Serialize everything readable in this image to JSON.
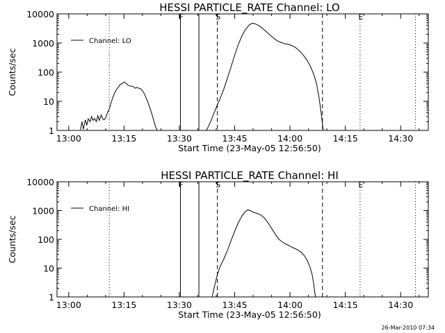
{
  "footer_timestamp": "26-Mar-2010 07:34",
  "chart_data": [
    {
      "type": "line",
      "title": "HESSI PARTICLE_RATE Channel: LO",
      "xlabel": "Start Time (23-May-05 12:56:50)",
      "ylabel": "Counts/sec",
      "x_units": "minutes after 13:00 (23-May-05)",
      "xlim": [
        -3.17,
        97.5
      ],
      "ylim": [
        1,
        10000
      ],
      "y_scale": "log",
      "x_ticks": [
        "13:00",
        "13:15",
        "13:30",
        "13:45",
        "14:00",
        "14:15",
        "14:30"
      ],
      "x_tick_values": [
        0,
        15,
        30,
        45,
        60,
        75,
        90
      ],
      "y_ticks": [
        "1",
        "10",
        "100",
        "1000",
        "10000"
      ],
      "y_tick_values": [
        1,
        10,
        100,
        1000,
        10000
      ],
      "legend": {
        "position": "top-left",
        "entries": [
          "Channel: LO"
        ]
      },
      "grid": false,
      "markers": [
        {
          "label": "F",
          "x": 30.3,
          "style": "solid"
        },
        {
          "label": "",
          "x": 35.3,
          "style": "solid"
        },
        {
          "label": "S",
          "x": 40.3,
          "style": "dashed"
        },
        {
          "label": "",
          "x": 68.8,
          "style": "dashed"
        },
        {
          "label": "E",
          "x": 79.0,
          "style": "dotted"
        },
        {
          "label": "",
          "x": 11.0,
          "style": "dotted"
        },
        {
          "label": "",
          "x": 94.0,
          "style": "dotted"
        }
      ],
      "series": [
        {
          "name": "Channel: LO",
          "segments": [
            [
              [
                3.2,
                1.05
              ],
              [
                3.6,
                2.0
              ],
              [
                4.0,
                1.1
              ],
              [
                4.5,
                2.3
              ],
              [
                4.9,
                1.5
              ],
              [
                5.3,
                2.5
              ],
              [
                5.8,
                2.0
              ],
              [
                6.2,
                3.0
              ],
              [
                6.6,
                2.2
              ],
              [
                7.0,
                2.6
              ],
              [
                7.5,
                2.0
              ],
              [
                7.9,
                3.2
              ],
              [
                8.3,
                2.2
              ],
              [
                8.8,
                3.4
              ],
              [
                9.2,
                2.5
              ],
              [
                9.6,
                2.3
              ],
              [
                10.0,
                2.7
              ],
              [
                10.5,
                4.0
              ],
              [
                11.0,
                5.5
              ],
              [
                11.5,
                9.0
              ],
              [
                12.0,
                14
              ],
              [
                12.5,
                20
              ],
              [
                13.0,
                26
              ],
              [
                13.5,
                31
              ],
              [
                14.0,
                38
              ],
              [
                14.5,
                40
              ],
              [
                15.0,
                46
              ],
              [
                15.5,
                42
              ],
              [
                16.0,
                36
              ],
              [
                16.5,
                34
              ],
              [
                17.0,
                33
              ],
              [
                17.5,
                32
              ],
              [
                18.0,
                28
              ],
              [
                18.5,
                30
              ],
              [
                19.0,
                28
              ],
              [
                19.5,
                27
              ],
              [
                20.0,
                23
              ],
              [
                20.5,
                18
              ],
              [
                21.0,
                13
              ],
              [
                21.5,
                9
              ],
              [
                22.0,
                6
              ],
              [
                22.5,
                3.8
              ],
              [
                23.0,
                2.3
              ],
              [
                23.5,
                1.4
              ],
              [
                24.0,
                1.0
              ]
            ],
            [
              [
                37.3,
                1.0
              ],
              [
                37.8,
                1.3
              ],
              [
                38.3,
                1.8
              ],
              [
                38.8,
                2.5
              ],
              [
                39.3,
                3.7
              ],
              [
                39.8,
                5.2
              ],
              [
                40.3,
                7.5
              ],
              [
                41.0,
                12
              ],
              [
                42.0,
                25
              ],
              [
                43.0,
                60
              ],
              [
                44.0,
                150
              ],
              [
                45.0,
                380
              ],
              [
                46.0,
                900
              ],
              [
                47.0,
                1800
              ],
              [
                48.0,
                3000
              ],
              [
                49.0,
                4200
              ],
              [
                49.8,
                4800
              ],
              [
                50.5,
                4600
              ],
              [
                51.5,
                4000
              ],
              [
                52.5,
                3200
              ],
              [
                53.5,
                2500
              ],
              [
                54.5,
                1900
              ],
              [
                55.5,
                1500
              ],
              [
                56.5,
                1200
              ],
              [
                57.5,
                1050
              ],
              [
                58.5,
                950
              ],
              [
                59.5,
                900
              ],
              [
                60.5,
                820
              ],
              [
                61.5,
                700
              ],
              [
                62.5,
                550
              ],
              [
                63.5,
                400
              ],
              [
                64.5,
                270
              ],
              [
                65.5,
                160
              ],
              [
                66.5,
                80
              ],
              [
                67.2,
                40
              ],
              [
                67.8,
                15
              ],
              [
                68.3,
                5.5
              ],
              [
                68.7,
                2.2
              ],
              [
                69.0,
                1.0
              ]
            ]
          ]
        }
      ]
    },
    {
      "type": "line",
      "title": "HESSI PARTICLE_RATE Channel: HI",
      "xlabel": "Start Time (23-May-05 12:56:50)",
      "ylabel": "Counts/sec",
      "x_units": "minutes after 13:00 (23-May-05)",
      "xlim": [
        -3.17,
        97.5
      ],
      "ylim": [
        1,
        10000
      ],
      "y_scale": "log",
      "x_ticks": [
        "13:00",
        "13:15",
        "13:30",
        "13:45",
        "14:00",
        "14:15",
        "14:30"
      ],
      "x_tick_values": [
        0,
        15,
        30,
        45,
        60,
        75,
        90
      ],
      "y_ticks": [
        "1",
        "10",
        "100",
        "1000",
        "10000"
      ],
      "y_tick_values": [
        1,
        10,
        100,
        1000,
        10000
      ],
      "legend": {
        "position": "top-left",
        "entries": [
          "Channel: HI"
        ]
      },
      "grid": false,
      "markers": [
        {
          "label": "F",
          "x": 30.3,
          "style": "solid"
        },
        {
          "label": "",
          "x": 35.3,
          "style": "solid"
        },
        {
          "label": "S",
          "x": 40.3,
          "style": "dashed"
        },
        {
          "label": "",
          "x": 68.8,
          "style": "dashed"
        },
        {
          "label": "E",
          "x": 79.0,
          "style": "dotted"
        },
        {
          "label": "",
          "x": 11.0,
          "style": "dotted"
        },
        {
          "label": "",
          "x": 94.0,
          "style": "dotted"
        }
      ],
      "series": [
        {
          "name": "Channel: HI",
          "segments": [
            [
              [
                38.9,
                1.0
              ],
              [
                39.3,
                1.8
              ],
              [
                39.8,
                3.2
              ],
              [
                40.3,
                6.0
              ],
              [
                41.0,
                11
              ],
              [
                42.0,
                20
              ],
              [
                43.0,
                40
              ],
              [
                44.0,
                90
              ],
              [
                45.0,
                190
              ],
              [
                46.0,
                380
              ],
              [
                47.0,
                650
              ],
              [
                47.8,
                900
              ],
              [
                48.5,
                1050
              ],
              [
                49.2,
                1000
              ],
              [
                50.0,
                880
              ],
              [
                51.0,
                800
              ],
              [
                52.0,
                720
              ],
              [
                53.0,
                560
              ],
              [
                54.0,
                380
              ],
              [
                55.0,
                240
              ],
              [
                56.0,
                150
              ],
              [
                57.0,
                100
              ],
              [
                58.0,
                80
              ],
              [
                59.0,
                68
              ],
              [
                60.0,
                58
              ],
              [
                61.0,
                50
              ],
              [
                62.0,
                44
              ],
              [
                63.0,
                36
              ],
              [
                64.0,
                26
              ],
              [
                64.8,
                17
              ],
              [
                65.5,
                10
              ],
              [
                66.0,
                6
              ],
              [
                66.4,
                3
              ],
              [
                66.7,
                1.5
              ],
              [
                66.9,
                1.0
              ]
            ]
          ]
        }
      ]
    }
  ]
}
